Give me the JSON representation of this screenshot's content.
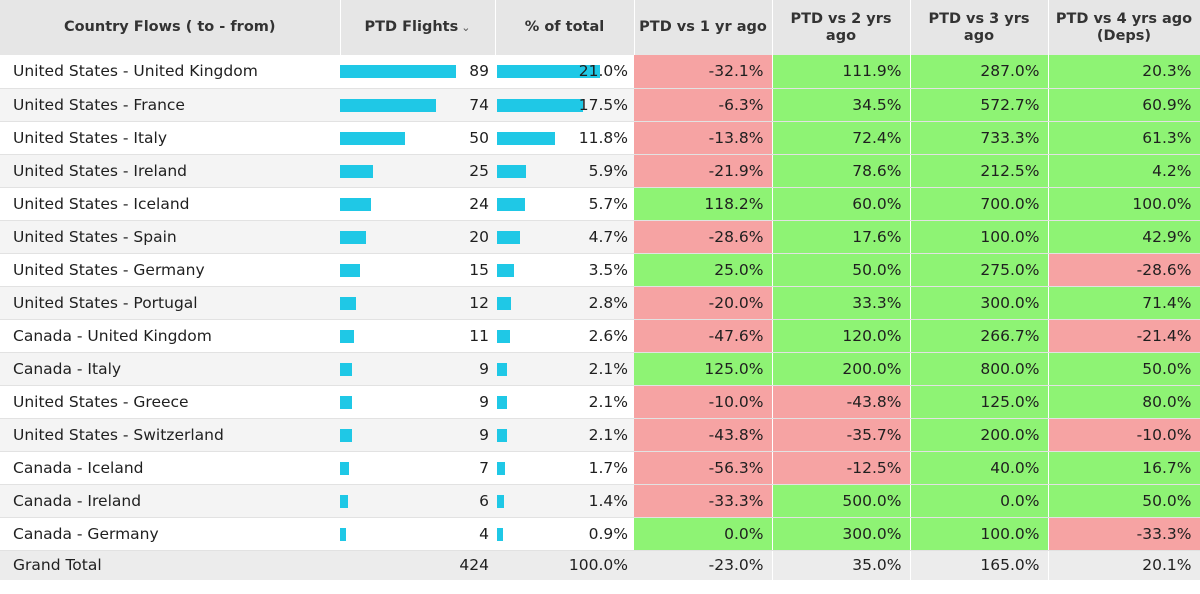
{
  "headers": {
    "name": "Country Flows ( to - from)",
    "flights": "PTD Flights",
    "pct": "% of total",
    "vs1": "PTD vs 1 yr ago",
    "vs2": "PTD vs 2 yrs ago",
    "vs3": "PTD vs 3 yrs ago",
    "vs4": "PTD vs 4 yrs ago (Deps)"
  },
  "sort_icon": "chevron-down-icon",
  "colors": {
    "bar": "#1fc8e6",
    "positive": "#8ef374",
    "negative": "#f6a3a3"
  },
  "rows": [
    {
      "name": "United States - United Kingdom",
      "flights": "89",
      "flights_n": 89,
      "pct": "21.0%",
      "pct_n": 21.0,
      "vs1": "-32.1%",
      "vs2": "111.9%",
      "vs3": "287.0%",
      "vs4": "20.3%"
    },
    {
      "name": "United States - France",
      "flights": "74",
      "flights_n": 74,
      "pct": "17.5%",
      "pct_n": 17.5,
      "vs1": "-6.3%",
      "vs2": "34.5%",
      "vs3": "572.7%",
      "vs4": "60.9%"
    },
    {
      "name": "United States - Italy",
      "flights": "50",
      "flights_n": 50,
      "pct": "11.8%",
      "pct_n": 11.8,
      "vs1": "-13.8%",
      "vs2": "72.4%",
      "vs3": "733.3%",
      "vs4": "61.3%"
    },
    {
      "name": "United States - Ireland",
      "flights": "25",
      "flights_n": 25,
      "pct": "5.9%",
      "pct_n": 5.9,
      "vs1": "-21.9%",
      "vs2": "78.6%",
      "vs3": "212.5%",
      "vs4": "4.2%"
    },
    {
      "name": "United States - Iceland",
      "flights": "24",
      "flights_n": 24,
      "pct": "5.7%",
      "pct_n": 5.7,
      "vs1": "118.2%",
      "vs2": "60.0%",
      "vs3": "700.0%",
      "vs4": "100.0%"
    },
    {
      "name": "United States - Spain",
      "flights": "20",
      "flights_n": 20,
      "pct": "4.7%",
      "pct_n": 4.7,
      "vs1": "-28.6%",
      "vs2": "17.6%",
      "vs3": "100.0%",
      "vs4": "42.9%"
    },
    {
      "name": "United States - Germany",
      "flights": "15",
      "flights_n": 15,
      "pct": "3.5%",
      "pct_n": 3.5,
      "vs1": "25.0%",
      "vs2": "50.0%",
      "vs3": "275.0%",
      "vs4": "-28.6%"
    },
    {
      "name": "United States - Portugal",
      "flights": "12",
      "flights_n": 12,
      "pct": "2.8%",
      "pct_n": 2.8,
      "vs1": "-20.0%",
      "vs2": "33.3%",
      "vs3": "300.0%",
      "vs4": "71.4%"
    },
    {
      "name": "Canada - United Kingdom",
      "flights": "11",
      "flights_n": 11,
      "pct": "2.6%",
      "pct_n": 2.6,
      "vs1": "-47.6%",
      "vs2": "120.0%",
      "vs3": "266.7%",
      "vs4": "-21.4%"
    },
    {
      "name": "Canada - Italy",
      "flights": "9",
      "flights_n": 9,
      "pct": "2.1%",
      "pct_n": 2.1,
      "vs1": "125.0%",
      "vs2": "200.0%",
      "vs3": "800.0%",
      "vs4": "50.0%"
    },
    {
      "name": "United States - Greece",
      "flights": "9",
      "flights_n": 9,
      "pct": "2.1%",
      "pct_n": 2.1,
      "vs1": "-10.0%",
      "vs2": "-43.8%",
      "vs3": "125.0%",
      "vs4": "80.0%"
    },
    {
      "name": "United States - Switzerland",
      "flights": "9",
      "flights_n": 9,
      "pct": "2.1%",
      "pct_n": 2.1,
      "vs1": "-43.8%",
      "vs2": "-35.7%",
      "vs3": "200.0%",
      "vs4": "-10.0%"
    },
    {
      "name": "Canada - Iceland",
      "flights": "7",
      "flights_n": 7,
      "pct": "1.7%",
      "pct_n": 1.7,
      "vs1": "-56.3%",
      "vs2": "-12.5%",
      "vs3": "40.0%",
      "vs4": "16.7%"
    },
    {
      "name": "Canada - Ireland",
      "flights": "6",
      "flights_n": 6,
      "pct": "1.4%",
      "pct_n": 1.4,
      "vs1": "-33.3%",
      "vs2": "500.0%",
      "vs3": "0.0%",
      "vs4": "50.0%"
    },
    {
      "name": "Canada - Germany",
      "flights": "4",
      "flights_n": 4,
      "pct": "0.9%",
      "pct_n": 0.9,
      "vs1": "0.0%",
      "vs2": "300.0%",
      "vs3": "100.0%",
      "vs4": "-33.3%"
    }
  ],
  "total": {
    "name": "Grand Total",
    "flights": "424",
    "pct": "100.0%",
    "vs1": "-23.0%",
    "vs2": "35.0%",
    "vs3": "165.0%",
    "vs4": "20.1%"
  }
}
